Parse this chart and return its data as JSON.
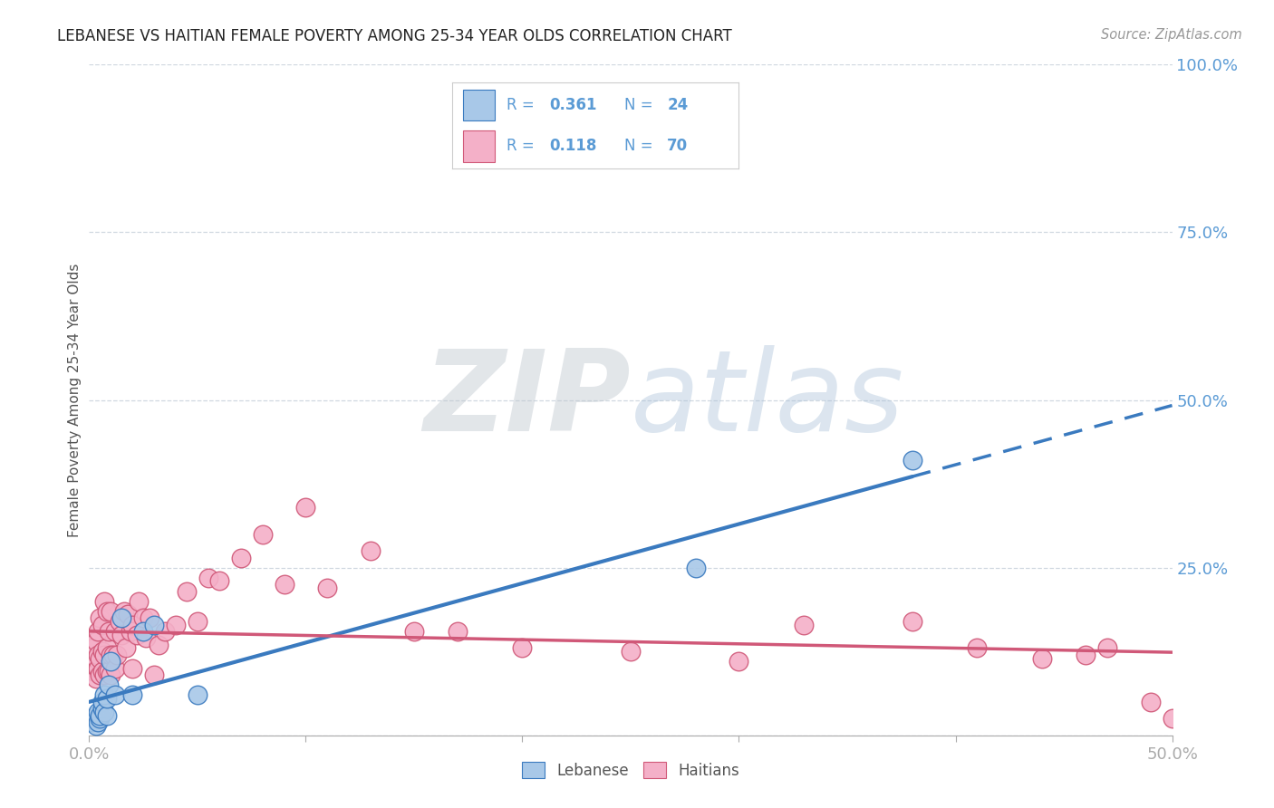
{
  "title": "LEBANESE VS HAITIAN FEMALE POVERTY AMONG 25-34 YEAR OLDS CORRELATION CHART",
  "source": "Source: ZipAtlas.com",
  "ylabel": "Female Poverty Among 25-34 Year Olds",
  "xlim": [
    0,
    0.5
  ],
  "ylim": [
    0,
    1.0
  ],
  "background_color": "#ffffff",
  "grid_color": "#d0d8e0",
  "watermark_zip": "ZIP",
  "watermark_atlas": "atlas",
  "lebanese_color": "#a8c8e8",
  "haitian_color": "#f4b0c8",
  "lebanese_line_color": "#3a7abf",
  "haitian_line_color": "#d05878",
  "axis_color": "#5b9bd5",
  "lebanese_R": "0.361",
  "lebanese_N": "24",
  "haitian_R": "0.118",
  "haitian_N": "70",
  "lebanese_x": [
    0.001,
    0.002,
    0.003,
    0.003,
    0.004,
    0.004,
    0.005,
    0.005,
    0.006,
    0.006,
    0.007,
    0.007,
    0.008,
    0.008,
    0.009,
    0.01,
    0.012,
    0.015,
    0.02,
    0.025,
    0.03,
    0.05,
    0.28,
    0.38
  ],
  "lebanese_y": [
    0.02,
    0.025,
    0.015,
    0.03,
    0.02,
    0.035,
    0.025,
    0.03,
    0.04,
    0.05,
    0.035,
    0.06,
    0.03,
    0.055,
    0.075,
    0.11,
    0.06,
    0.175,
    0.06,
    0.155,
    0.165,
    0.06,
    0.25,
    0.41
  ],
  "haitian_x": [
    0.001,
    0.002,
    0.002,
    0.003,
    0.003,
    0.003,
    0.004,
    0.004,
    0.004,
    0.005,
    0.005,
    0.005,
    0.006,
    0.006,
    0.006,
    0.007,
    0.007,
    0.007,
    0.008,
    0.008,
    0.008,
    0.009,
    0.009,
    0.01,
    0.01,
    0.01,
    0.011,
    0.012,
    0.012,
    0.013,
    0.014,
    0.015,
    0.016,
    0.017,
    0.018,
    0.019,
    0.02,
    0.02,
    0.022,
    0.023,
    0.025,
    0.026,
    0.028,
    0.03,
    0.032,
    0.035,
    0.04,
    0.045,
    0.05,
    0.055,
    0.06,
    0.07,
    0.08,
    0.09,
    0.1,
    0.11,
    0.13,
    0.15,
    0.17,
    0.2,
    0.25,
    0.3,
    0.33,
    0.38,
    0.41,
    0.44,
    0.46,
    0.47,
    0.49,
    0.5
  ],
  "haitian_y": [
    0.145,
    0.095,
    0.13,
    0.085,
    0.115,
    0.14,
    0.1,
    0.12,
    0.155,
    0.09,
    0.115,
    0.175,
    0.095,
    0.125,
    0.165,
    0.09,
    0.12,
    0.2,
    0.095,
    0.13,
    0.185,
    0.095,
    0.155,
    0.09,
    0.12,
    0.185,
    0.12,
    0.1,
    0.155,
    0.12,
    0.17,
    0.15,
    0.185,
    0.13,
    0.18,
    0.155,
    0.1,
    0.165,
    0.15,
    0.2,
    0.175,
    0.145,
    0.175,
    0.09,
    0.135,
    0.155,
    0.165,
    0.215,
    0.17,
    0.235,
    0.23,
    0.265,
    0.3,
    0.225,
    0.34,
    0.22,
    0.275,
    0.155,
    0.155,
    0.13,
    0.125,
    0.11,
    0.165,
    0.17,
    0.13,
    0.115,
    0.12,
    0.13,
    0.05,
    0.025
  ]
}
